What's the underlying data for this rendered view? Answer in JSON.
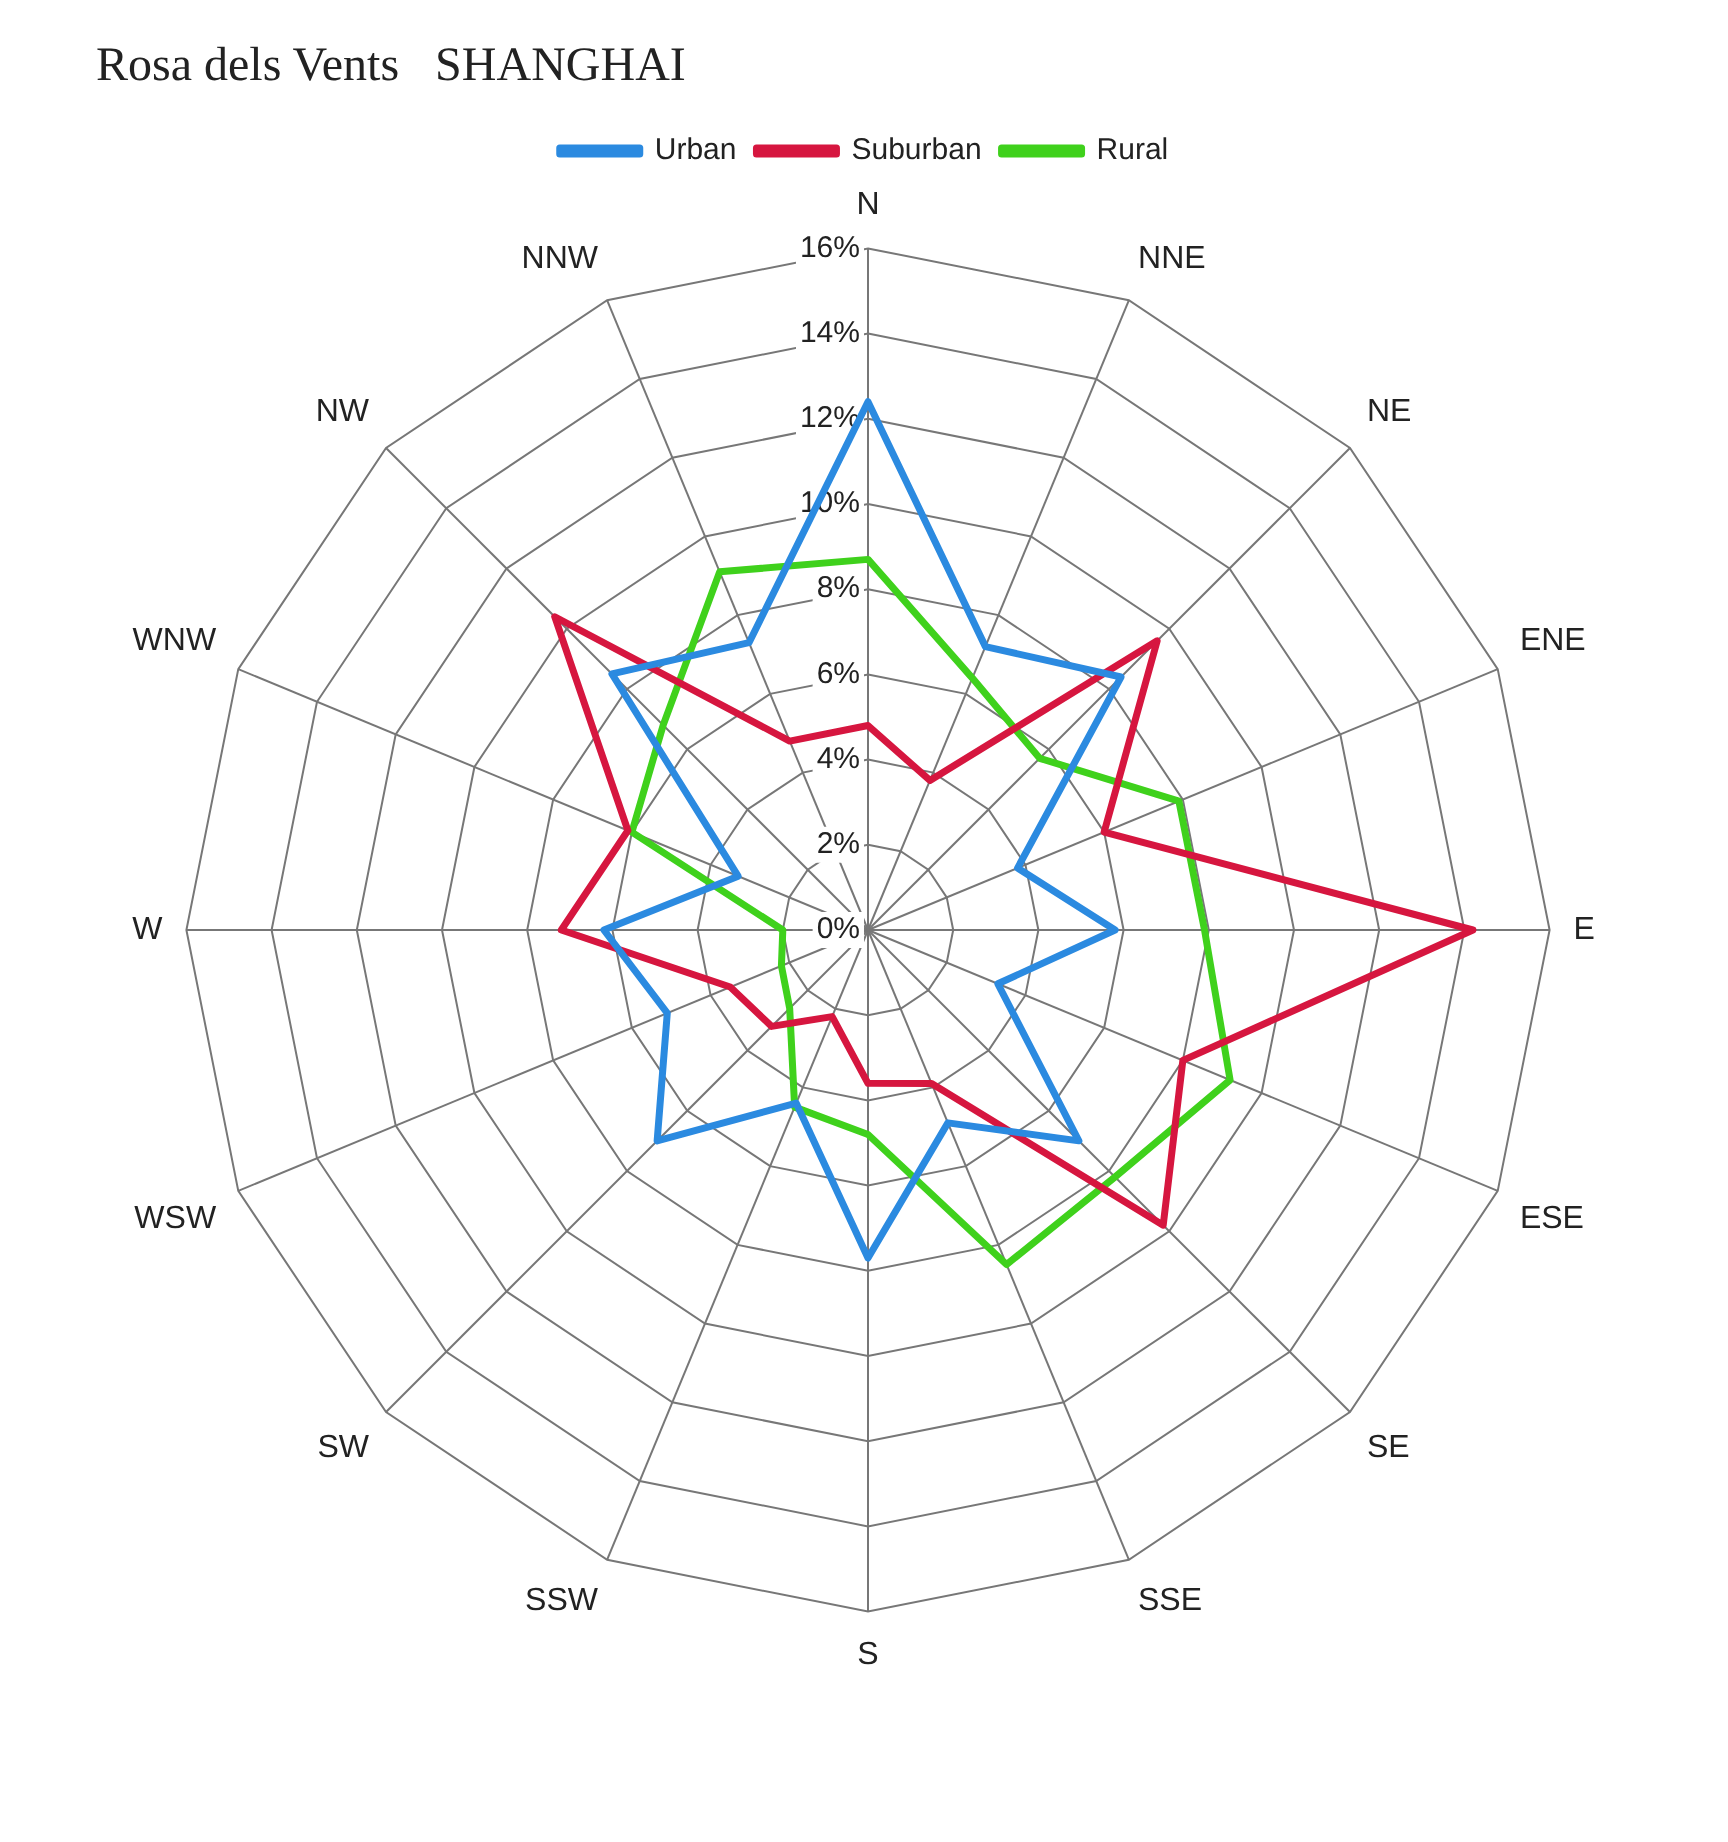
{
  "chart_data": {
    "type": "radar",
    "title": "Rosa dels Vents   SHANGHAI",
    "categories": [
      "N",
      "NNE",
      "NE",
      "ENE",
      "E",
      "ESE",
      "SE",
      "SSE",
      "S",
      "SSW",
      "SW",
      "WSW",
      "W",
      "WNW",
      "NW",
      "NNW"
    ],
    "series": [
      {
        "name": "Urban",
        "color": "#2b8ae0",
        "values": [
          12.4,
          7.2,
          8.4,
          3.8,
          5.8,
          3.3,
          7,
          4.9,
          7.7,
          4.4,
          7,
          5.1,
          6.2,
          3.3,
          8.5,
          7.3
        ]
      },
      {
        "name": "Suburban",
        "color": "#d6163f",
        "values": [
          4.8,
          3.8,
          9.6,
          6,
          14.2,
          8,
          9.8,
          3.9,
          3.6,
          2.2,
          3.2,
          3.5,
          7.2,
          6.1,
          10.4,
          4.8
        ]
      },
      {
        "name": "Rural",
        "color": "#3fd11c",
        "values": [
          8.7,
          6.4,
          5.7,
          7.9,
          7.9,
          9.2,
          8.2,
          8.5,
          4.8,
          4.5,
          2.6,
          2.2,
          2,
          6,
          6.8,
          9.1
        ]
      }
    ],
    "ylim": [
      0,
      16
    ],
    "yticks": [
      {
        "value": 0,
        "label": "0%"
      },
      {
        "value": 2,
        "label": "2%"
      },
      {
        "value": 4,
        "label": "4%"
      },
      {
        "value": 6,
        "label": "6%"
      },
      {
        "value": 8,
        "label": "8%"
      },
      {
        "value": 10,
        "label": "10%"
      },
      {
        "value": 12,
        "label": "12%"
      },
      {
        "value": 14,
        "label": "14%"
      },
      {
        "value": 16,
        "label": "16%"
      }
    ],
    "grid": true,
    "legend": "top",
    "marker": "none",
    "line_style": "solid"
  }
}
